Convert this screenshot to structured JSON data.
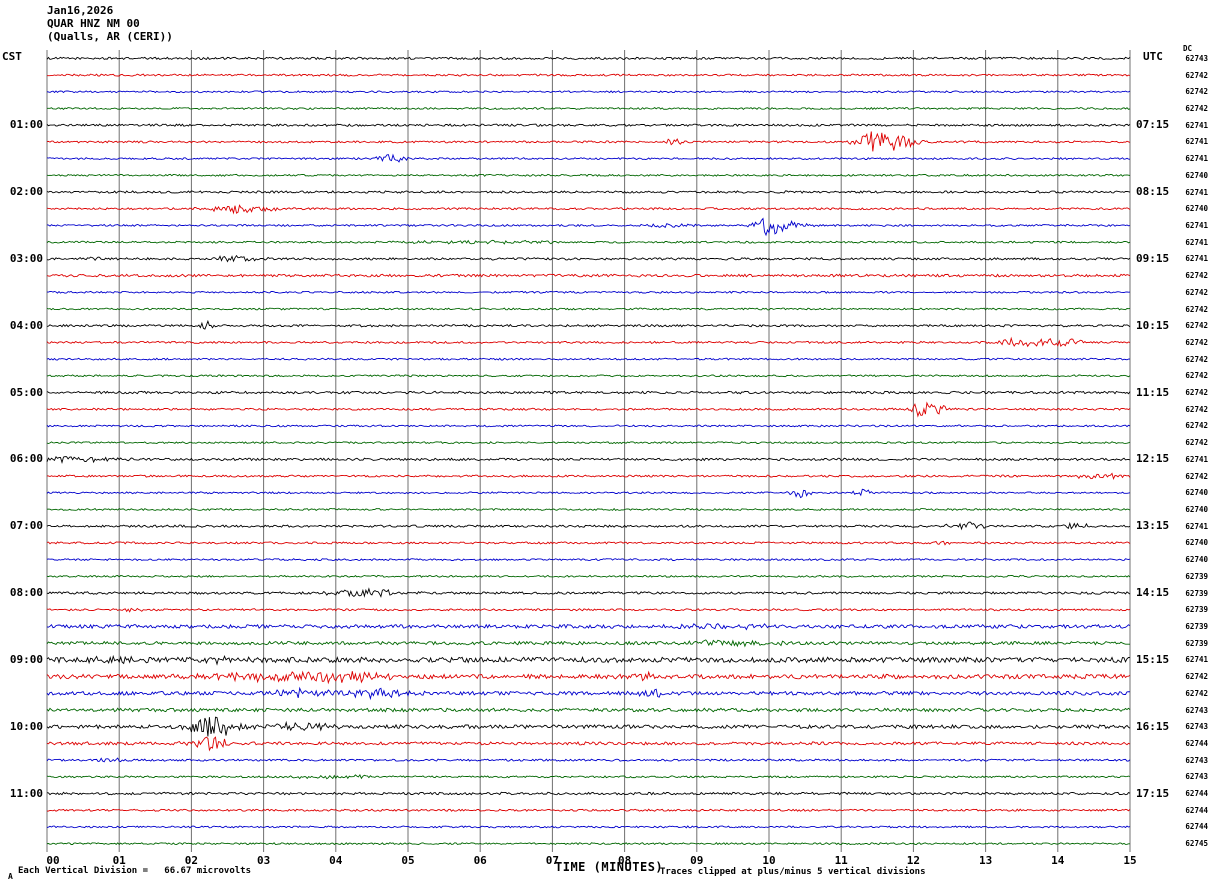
{
  "header": {
    "date": "Jan16,2026",
    "station": "QUAR HNZ NM 00",
    "location": "(Qualls, AR (CERI))"
  },
  "axes": {
    "left_header": "CST",
    "right_header": "UTC",
    "dc_header": "DC",
    "x_title": "TIME (MINUTES)",
    "x_ticks": [
      "00",
      "01",
      "02",
      "03",
      "04",
      "05",
      "06",
      "07",
      "08",
      "09",
      "10",
      "11",
      "12",
      "13",
      "14",
      "15"
    ]
  },
  "footer": {
    "scale_note": "Each Vertical Division =   66.67 microvolts",
    "clip_note": "Traces clipped at plus/minus 5 vertical divisions",
    "marker": "A"
  },
  "chart_data": {
    "type": "line",
    "kind": "helicorder-seismogram",
    "title": "QUAR HNZ NM 00 (Qualls, AR (CERI)) Jan16,2026",
    "xlabel": "TIME (MINUTES)",
    "x_range_minutes": [
      0,
      15
    ],
    "minutes_per_line": 15,
    "lines_per_hour": 4,
    "clip_divisions": 5,
    "microvolts_per_division": 66.67,
    "grid": true,
    "palette": {
      "black": "#000000",
      "red": "#dd0000",
      "blue": "#0000cc",
      "green": "#006600"
    },
    "color_cycle": [
      "black",
      "red",
      "blue",
      "green"
    ],
    "traces": [
      {
        "color": "black",
        "dc": "62743",
        "left_label": null,
        "right_label": null,
        "noise": 1.1,
        "events": []
      },
      {
        "color": "red",
        "dc": "62742",
        "left_label": null,
        "right_label": null,
        "noise": 1.0,
        "events": []
      },
      {
        "color": "blue",
        "dc": "62742",
        "left_label": null,
        "right_label": null,
        "noise": 0.9,
        "events": []
      },
      {
        "color": "green",
        "dc": "62742",
        "left_label": null,
        "right_label": null,
        "noise": 0.9,
        "events": []
      },
      {
        "color": "black",
        "dc": "62741",
        "left_label": "01:00",
        "right_label": "07:15",
        "noise": 1.1,
        "events": []
      },
      {
        "color": "red",
        "dc": "62741",
        "left_label": null,
        "right_label": null,
        "noise": 1.0,
        "events": [
          {
            "m": 8.7,
            "a": 3,
            "w": 0.12
          },
          {
            "m": 11.5,
            "a": 11,
            "w": 0.22
          },
          {
            "m": 11.9,
            "a": 4,
            "w": 0.15
          }
        ]
      },
      {
        "color": "blue",
        "dc": "62741",
        "left_label": null,
        "right_label": null,
        "noise": 0.9,
        "events": [
          {
            "m": 4.75,
            "a": 4,
            "w": 0.15
          }
        ]
      },
      {
        "color": "green",
        "dc": "62740",
        "left_label": null,
        "right_label": null,
        "noise": 0.9,
        "events": []
      },
      {
        "color": "black",
        "dc": "62741",
        "left_label": "02:00",
        "right_label": "08:15",
        "noise": 1.1,
        "events": []
      },
      {
        "color": "red",
        "dc": "62740",
        "left_label": null,
        "right_label": null,
        "noise": 1.0,
        "events": [
          {
            "m": 2.7,
            "a": 4,
            "w": 0.3
          }
        ]
      },
      {
        "color": "blue",
        "dc": "62741",
        "left_label": null,
        "right_label": null,
        "noise": 0.9,
        "events": [
          {
            "m": 8.6,
            "a": 2,
            "w": 0.2
          },
          {
            "m": 10.0,
            "a": 9,
            "w": 0.13
          },
          {
            "m": 10.3,
            "a": 3,
            "w": 0.2
          }
        ]
      },
      {
        "color": "green",
        "dc": "62741",
        "left_label": null,
        "right_label": null,
        "noise": 0.9,
        "events": [
          {
            "m": 6.0,
            "a": 1.5,
            "w": 0.8
          }
        ]
      },
      {
        "color": "black",
        "dc": "62741",
        "left_label": "03:00",
        "right_label": "09:15",
        "noise": 1.1,
        "events": [
          {
            "m": 0.8,
            "a": 2,
            "w": 0.2
          },
          {
            "m": 2.6,
            "a": 3.5,
            "w": 0.25
          }
        ]
      },
      {
        "color": "red",
        "dc": "62742",
        "left_label": null,
        "right_label": null,
        "noise": 1.3,
        "events": []
      },
      {
        "color": "blue",
        "dc": "62742",
        "left_label": null,
        "right_label": null,
        "noise": 0.9,
        "events": []
      },
      {
        "color": "green",
        "dc": "62742",
        "left_label": null,
        "right_label": null,
        "noise": 0.9,
        "events": []
      },
      {
        "color": "black",
        "dc": "62742",
        "left_label": "04:00",
        "right_label": "10:15",
        "noise": 1.1,
        "events": [
          {
            "m": 2.2,
            "a": 4,
            "w": 0.08
          }
        ]
      },
      {
        "color": "red",
        "dc": "62742",
        "left_label": null,
        "right_label": null,
        "noise": 1.0,
        "events": [
          {
            "m": 13.5,
            "a": 4.5,
            "w": 0.25
          },
          {
            "m": 14.1,
            "a": 3.5,
            "w": 0.18
          }
        ]
      },
      {
        "color": "blue",
        "dc": "62742",
        "left_label": null,
        "right_label": null,
        "noise": 0.9,
        "events": []
      },
      {
        "color": "green",
        "dc": "62742",
        "left_label": null,
        "right_label": null,
        "noise": 0.9,
        "events": []
      },
      {
        "color": "black",
        "dc": "62742",
        "left_label": "05:00",
        "right_label": "11:15",
        "noise": 1.2,
        "events": []
      },
      {
        "color": "red",
        "dc": "62742",
        "left_label": null,
        "right_label": null,
        "noise": 1.0,
        "events": [
          {
            "m": 12.2,
            "a": 9,
            "w": 0.18
          }
        ]
      },
      {
        "color": "blue",
        "dc": "62742",
        "left_label": null,
        "right_label": null,
        "noise": 0.9,
        "events": []
      },
      {
        "color": "green",
        "dc": "62742",
        "left_label": null,
        "right_label": null,
        "noise": 0.9,
        "events": []
      },
      {
        "color": "black",
        "dc": "62741",
        "left_label": "06:00",
        "right_label": "12:15",
        "noise": 1.2,
        "events": [
          {
            "m": 0.4,
            "a": 2.5,
            "w": 0.4
          }
        ]
      },
      {
        "color": "red",
        "dc": "62742",
        "left_label": null,
        "right_label": null,
        "noise": 1.0,
        "events": [
          {
            "m": 14.6,
            "a": 3.5,
            "w": 0.25
          }
        ]
      },
      {
        "color": "blue",
        "dc": "62740",
        "left_label": null,
        "right_label": null,
        "noise": 0.9,
        "events": [
          {
            "m": 10.45,
            "a": 6,
            "w": 0.1
          },
          {
            "m": 11.3,
            "a": 3.5,
            "w": 0.1
          }
        ]
      },
      {
        "color": "green",
        "dc": "62740",
        "left_label": null,
        "right_label": null,
        "noise": 0.9,
        "events": []
      },
      {
        "color": "black",
        "dc": "62741",
        "left_label": "07:00",
        "right_label": "13:15",
        "noise": 1.1,
        "events": [
          {
            "m": 12.7,
            "a": 3.5,
            "w": 0.2
          },
          {
            "m": 14.2,
            "a": 3.5,
            "w": 0.15
          }
        ]
      },
      {
        "color": "red",
        "dc": "62740",
        "left_label": null,
        "right_label": null,
        "noise": 1.0,
        "events": [
          {
            "m": 12.4,
            "a": 2.5,
            "w": 0.1
          }
        ]
      },
      {
        "color": "blue",
        "dc": "62740",
        "left_label": null,
        "right_label": null,
        "noise": 0.9,
        "events": []
      },
      {
        "color": "green",
        "dc": "62739",
        "left_label": null,
        "right_label": null,
        "noise": 0.9,
        "events": []
      },
      {
        "color": "black",
        "dc": "62739",
        "left_label": "08:00",
        "right_label": "14:15",
        "noise": 1.2,
        "events": [
          {
            "m": 4.4,
            "a": 4,
            "w": 0.35
          }
        ]
      },
      {
        "color": "red",
        "dc": "62739",
        "left_label": null,
        "right_label": null,
        "noise": 1.0,
        "events": [
          {
            "m": 1.25,
            "a": 2.5,
            "w": 0.1
          }
        ]
      },
      {
        "color": "blue",
        "dc": "62739",
        "left_label": null,
        "right_label": null,
        "noise": 1.8,
        "events": [
          {
            "m": 9.3,
            "a": 2,
            "w": 0.5
          }
        ]
      },
      {
        "color": "green",
        "dc": "62739",
        "left_label": null,
        "right_label": null,
        "noise": 1.6,
        "events": [
          {
            "m": 9.5,
            "a": 3,
            "w": 0.4
          }
        ]
      },
      {
        "color": "black",
        "dc": "62741",
        "left_label": "09:00",
        "right_label": "15:15",
        "noise": 2.6,
        "events": [
          {
            "m": 1.1,
            "a": 3,
            "w": 0.3
          },
          {
            "m": 2.1,
            "a": 3,
            "w": 0.3
          }
        ]
      },
      {
        "color": "red",
        "dc": "62742",
        "left_label": null,
        "right_label": null,
        "noise": 2.2,
        "events": [
          {
            "m": 3.0,
            "a": 4,
            "w": 0.6
          },
          {
            "m": 4.2,
            "a": 4,
            "w": 0.4
          },
          {
            "m": 8.3,
            "a": 3,
            "w": 0.2
          }
        ]
      },
      {
        "color": "blue",
        "dc": "62742",
        "left_label": null,
        "right_label": null,
        "noise": 1.8,
        "events": [
          {
            "m": 3.6,
            "a": 5,
            "w": 0.3
          },
          {
            "m": 4.6,
            "a": 4,
            "w": 0.3
          },
          {
            "m": 8.35,
            "a": 5,
            "w": 0.12
          }
        ]
      },
      {
        "color": "green",
        "dc": "62743",
        "left_label": null,
        "right_label": null,
        "noise": 1.7,
        "events": []
      },
      {
        "color": "black",
        "dc": "62743",
        "left_label": "10:00",
        "right_label": "16:15",
        "noise": 1.8,
        "events": [
          {
            "m": 2.3,
            "a": 13,
            "w": 0.22
          },
          {
            "m": 3.5,
            "a": 4,
            "w": 0.3
          }
        ]
      },
      {
        "color": "red",
        "dc": "62744",
        "left_label": null,
        "right_label": null,
        "noise": 1.5,
        "events": [
          {
            "m": 2.25,
            "a": 8,
            "w": 0.18
          }
        ]
      },
      {
        "color": "blue",
        "dc": "62743",
        "left_label": null,
        "right_label": null,
        "noise": 1.0,
        "events": [
          {
            "m": 0.9,
            "a": 2,
            "w": 0.2
          }
        ]
      },
      {
        "color": "green",
        "dc": "62743",
        "left_label": null,
        "right_label": null,
        "noise": 0.9,
        "events": [
          {
            "m": 4.0,
            "a": 1.5,
            "w": 0.5
          }
        ]
      },
      {
        "color": "black",
        "dc": "62744",
        "left_label": "11:00",
        "right_label": "17:15",
        "noise": 1.2,
        "events": []
      },
      {
        "color": "red",
        "dc": "62744",
        "left_label": null,
        "right_label": null,
        "noise": 1.0,
        "events": []
      },
      {
        "color": "blue",
        "dc": "62744",
        "left_label": null,
        "right_label": null,
        "noise": 0.9,
        "events": []
      },
      {
        "color": "green",
        "dc": "62745",
        "left_label": null,
        "right_label": null,
        "noise": 0.9,
        "events": []
      }
    ]
  }
}
